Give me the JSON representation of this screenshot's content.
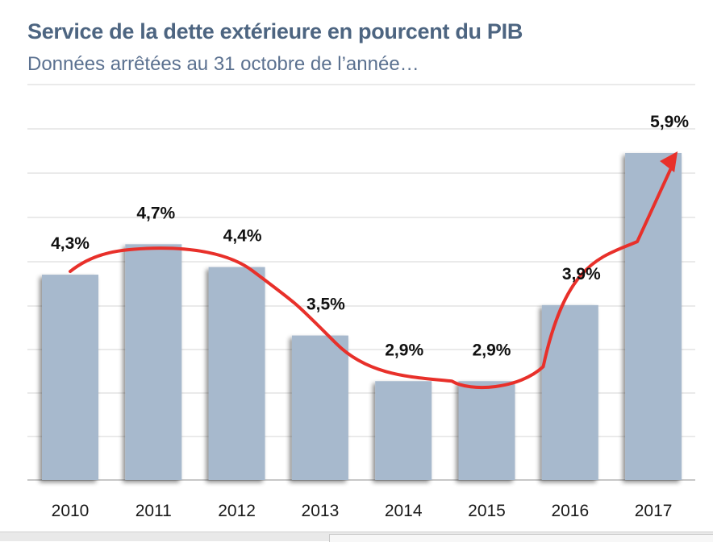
{
  "header": {
    "title": "Service de la dette extérieure en pourcent du PIB",
    "subtitle": "Données arrêtées au 31 octobre de l’année…"
  },
  "chart_data": {
    "type": "bar",
    "title": "Service de la dette extérieure en pourcent du PIB",
    "subtitle": "Données arrêtées au 31 octobre de l’année…",
    "categories": [
      "2010",
      "2011",
      "2012",
      "2013",
      "2014",
      "2015",
      "2016",
      "2017"
    ],
    "values": [
      4.3,
      4.7,
      4.4,
      3.5,
      2.9,
      2.9,
      3.9,
      5.9
    ],
    "value_labels": [
      "4,3%",
      "4,7%",
      "4,4%",
      "3,5%",
      "2,9%",
      "2,9%",
      "3,9%",
      "5,9%"
    ],
    "xlabel": "",
    "ylabel": "",
    "ylim": [
      1.6,
      6.8
    ],
    "grid": true,
    "bar_color": "#a7b9cd",
    "trend_color": "#e8302a",
    "trend_arrow": true
  }
}
